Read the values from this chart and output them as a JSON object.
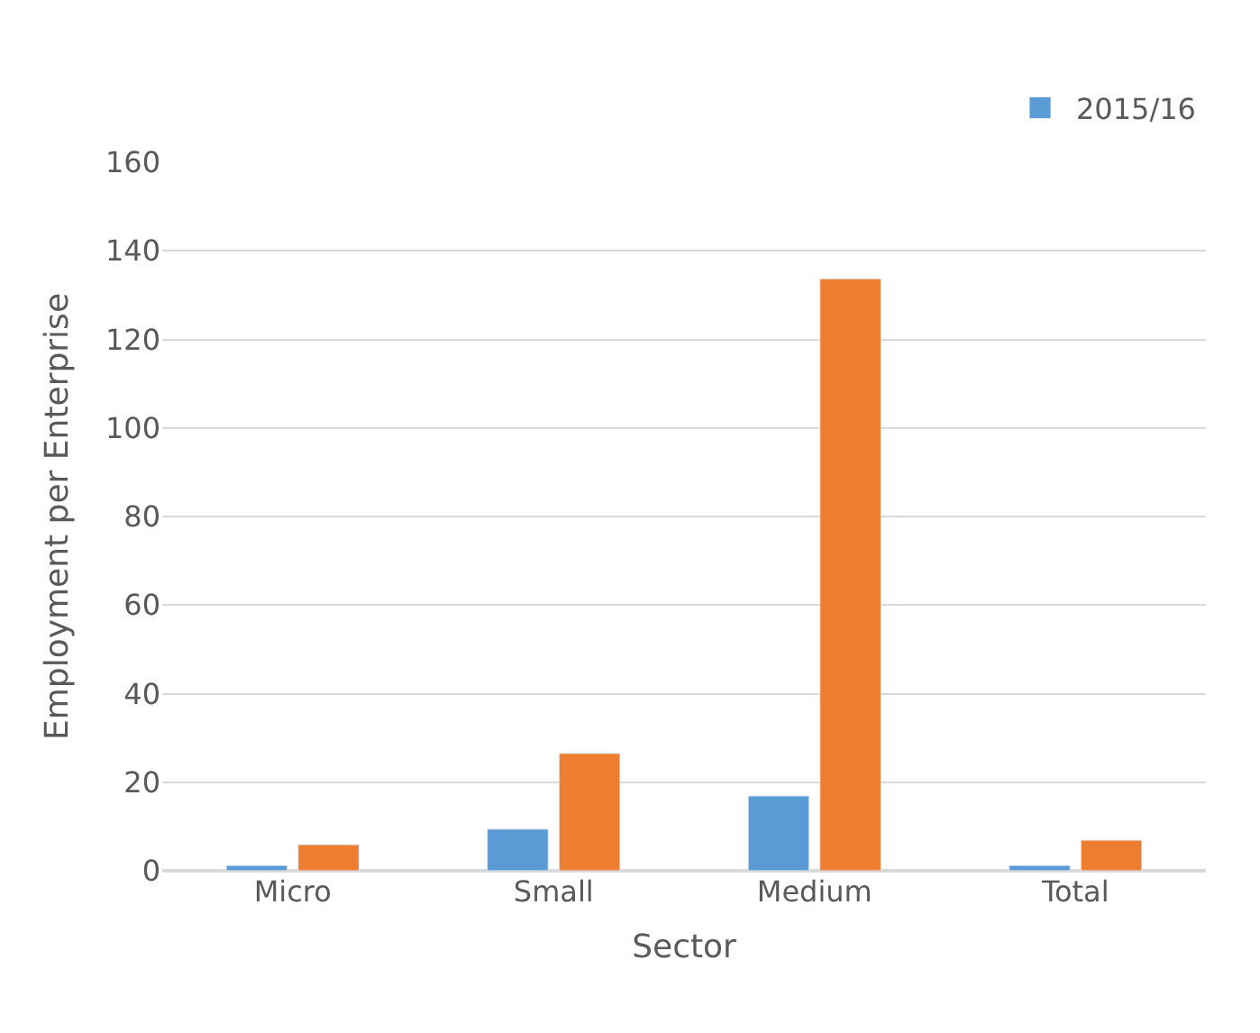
{
  "chart_data": {
    "type": "bar",
    "xlabel": "Sector",
    "ylabel": "Employment per Enterprise",
    "categories": [
      "Micro",
      "Small",
      "Medium",
      "Total"
    ],
    "series": [
      {
        "name": "2015/16",
        "color": "#5b9bd5",
        "values": [
          1.2,
          9.4,
          16.9,
          1.2
        ]
      },
      {
        "color": "#ed7d31",
        "values": [
          5.9,
          26.5,
          133.7,
          6.9
        ]
      }
    ],
    "ylim": [
      0,
      160
    ],
    "yticks": [
      0,
      20,
      40,
      60,
      80,
      100,
      120,
      140,
      160
    ],
    "grid": "y",
    "legend": "top right"
  }
}
